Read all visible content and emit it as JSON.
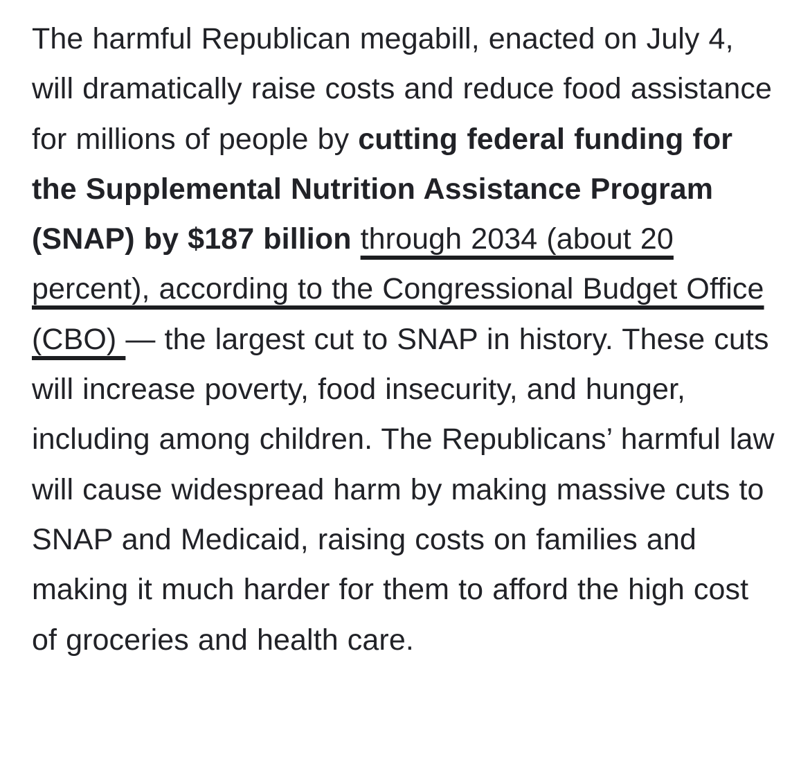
{
  "page": {
    "background_color": "#ffffff",
    "text_color": "#212227"
  },
  "article": {
    "paragraph": {
      "runs": [
        {
          "style": "normal",
          "text": "The harmful Republican megabill, enacted on July 4, will dramatically raise costs and reduce food assistance for millions of people by "
        },
        {
          "style": "bold",
          "text": "cutting federal funding for the Supplemental Nutrition Assistance Program (SNAP) by $187 billion"
        },
        {
          "style": "normal",
          "text": " "
        },
        {
          "style": "link",
          "text": "through 2034 (about 20 percent), according to the Congressional Budget Office (CBO) "
        },
        {
          "style": "normal",
          "text": "— the largest cut to SNAP in history. These cuts will increase poverty, food insecurity, and hunger, including among children. The Republicans’ harmful law will cause widespread harm by making massive cuts to SNAP and Medicaid, raising costs on families and making it much harder for them to afford the high cost of groceries and health care."
        }
      ]
    }
  }
}
